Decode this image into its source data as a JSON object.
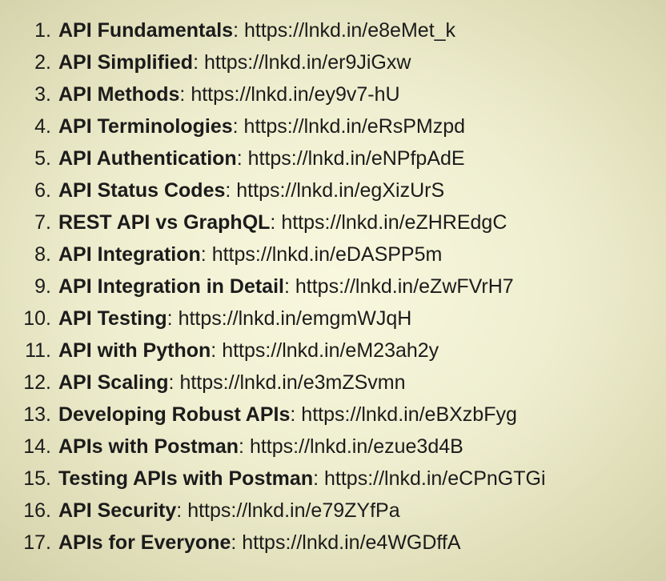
{
  "items": [
    {
      "number": "1.",
      "title": "API Fundamentals",
      "url": "https://lnkd.in/e8eMet_k"
    },
    {
      "number": "2.",
      "title": "API Simplified",
      "url": "https://lnkd.in/er9JiGxw"
    },
    {
      "number": "3.",
      "title": "API Methods",
      "url": "https://lnkd.in/ey9v7-hU"
    },
    {
      "number": "4.",
      "title": "API Terminologies",
      "url": "https://lnkd.in/eRsPMzpd"
    },
    {
      "number": "5.",
      "title": "API Authentication",
      "url": "https://lnkd.in/eNPfpAdE"
    },
    {
      "number": "6.",
      "title": "API Status Codes",
      "url": "https://lnkd.in/egXizUrS"
    },
    {
      "number": "7.",
      "title": "REST API vs GraphQL",
      "url": "https://lnkd.in/eZHREdgC"
    },
    {
      "number": "8.",
      "title": "API Integration",
      "url": "https://lnkd.in/eDASPP5m"
    },
    {
      "number": "9.",
      "title": "API Integration in Detail",
      "url": "https://lnkd.in/eZwFVrH7"
    },
    {
      "number": "10.",
      "title": "API Testing",
      "url": "https://lnkd.in/emgmWJqH"
    },
    {
      "number": "11.",
      "title": "API with Python",
      "url": "https://lnkd.in/eM23ah2y"
    },
    {
      "number": "12.",
      "title": "API Scaling",
      "url": "https://lnkd.in/e3mZSvmn"
    },
    {
      "number": "13.",
      "title": "Developing Robust APIs",
      "url": "https://lnkd.in/eBXzbFyg"
    },
    {
      "number": "14.",
      "title": "APIs with Postman",
      "url": "https://lnkd.in/ezue3d4B"
    },
    {
      "number": "15.",
      "title": "Testing APIs with Postman",
      "url": "https://lnkd.in/eCPnGTGi"
    },
    {
      "number": "16.",
      "title": "API Security",
      "url": "https://lnkd.in/e79ZYfPa"
    },
    {
      "number": "17.",
      "title": "APIs for Everyone",
      "url": "https://lnkd.in/e4WGDffA"
    }
  ],
  "separator": ": "
}
